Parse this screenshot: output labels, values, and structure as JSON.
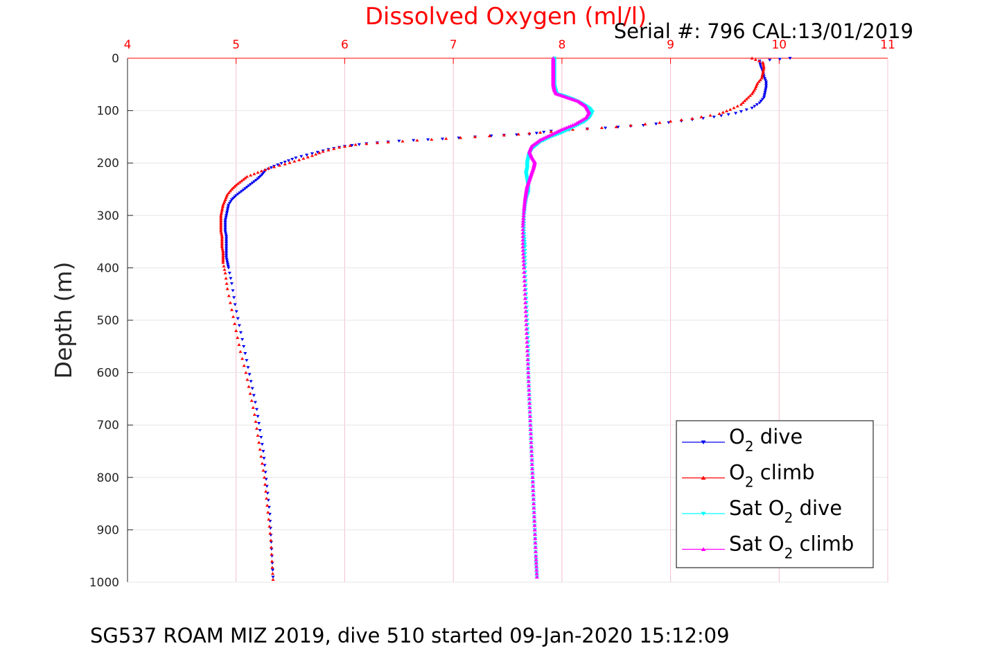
{
  "chart_data": {
    "type": "scatter",
    "title": "Dissolved Oxygen (ml/l)",
    "annotation": "Serial #: 796  CAL:13/01/2019",
    "footer": "SG537 ROAM MIZ 2019, dive 510 started 09-Jan-2020 15:12:09",
    "xlabel": "Dissolved Oxygen (ml/l)",
    "ylabel": "Depth (m)",
    "xlim": [
      4,
      11
    ],
    "ylim": [
      0,
      1000
    ],
    "y_reversed": true,
    "x_axis_position": "top",
    "xticks": [
      4,
      5,
      6,
      7,
      8,
      9,
      10,
      11
    ],
    "yticks": [
      0,
      100,
      200,
      300,
      400,
      500,
      600,
      700,
      800,
      900,
      1000
    ],
    "grid": true,
    "legend_position": "bottom-right",
    "colors": {
      "o2_dive": "#0000ee",
      "o2_climb": "#ff0000",
      "sat_dive": "#00ffff",
      "sat_climb": "#ff00ff",
      "grid": "#f2c0cc",
      "axis_x": "#ff0000"
    },
    "legend": [
      {
        "pre": "O",
        "sub": "2",
        "post": " dive",
        "series": "o2_dive",
        "marker": "down"
      },
      {
        "pre": "O",
        "sub": "2",
        "post": " climb",
        "series": "o2_climb",
        "marker": "up"
      },
      {
        "pre": "Sat O",
        "sub": "2",
        "post": " dive",
        "series": "sat_dive",
        "marker": "down"
      },
      {
        "pre": "Sat O",
        "sub": "2",
        "post": " climb",
        "series": "sat_climb",
        "marker": "up"
      }
    ],
    "series": [
      {
        "id": "o2_dive",
        "name": "O2 dive",
        "marker": "down",
        "color": "#0000ee",
        "points": [
          [
            10.1,
            0
          ],
          [
            9.82,
            5
          ],
          [
            9.83,
            15
          ],
          [
            9.85,
            25
          ],
          [
            9.86,
            35
          ],
          [
            9.88,
            45
          ],
          [
            9.88,
            55
          ],
          [
            9.87,
            65
          ],
          [
            9.86,
            75
          ],
          [
            9.82,
            85
          ],
          [
            9.75,
            95
          ],
          [
            9.6,
            105
          ],
          [
            9.4,
            112
          ],
          [
            9.1,
            120
          ],
          [
            8.75,
            128
          ],
          [
            8.4,
            133
          ],
          [
            7.9,
            139
          ],
          [
            7.7,
            145
          ],
          [
            7.35,
            148
          ],
          [
            6.9,
            154
          ],
          [
            6.5,
            158
          ],
          [
            6.2,
            163
          ],
          [
            6.0,
            168
          ],
          [
            5.85,
            174
          ],
          [
            5.7,
            182
          ],
          [
            5.55,
            190
          ],
          [
            5.45,
            198
          ],
          [
            5.35,
            206
          ],
          [
            5.27,
            214
          ],
          [
            5.24,
            222
          ],
          [
            5.2,
            230
          ],
          [
            5.15,
            238
          ],
          [
            5.1,
            246
          ],
          [
            5.05,
            254
          ],
          [
            5.0,
            262
          ],
          [
            4.96,
            270
          ],
          [
            4.93,
            280
          ],
          [
            4.92,
            290
          ],
          [
            4.91,
            300
          ],
          [
            4.9,
            310
          ],
          [
            4.9,
            320
          ],
          [
            4.9,
            330
          ],
          [
            4.91,
            340
          ],
          [
            4.91,
            350
          ],
          [
            4.91,
            360
          ],
          [
            4.91,
            370
          ],
          [
            4.91,
            380
          ],
          [
            4.92,
            390
          ],
          [
            4.93,
            400
          ],
          [
            4.96,
            430
          ],
          [
            4.99,
            470
          ],
          [
            5.03,
            510
          ],
          [
            5.07,
            550
          ],
          [
            5.11,
            590
          ],
          [
            5.15,
            630
          ],
          [
            5.19,
            670
          ],
          [
            5.22,
            710
          ],
          [
            5.25,
            750
          ],
          [
            5.27,
            790
          ],
          [
            5.29,
            830
          ],
          [
            5.31,
            870
          ],
          [
            5.32,
            910
          ],
          [
            5.33,
            950
          ],
          [
            5.34,
            990
          ]
        ]
      },
      {
        "id": "o2_climb",
        "name": "O2 climb",
        "marker": "up",
        "color": "#ff0000",
        "points": [
          [
            9.75,
            0
          ],
          [
            9.85,
            8
          ],
          [
            9.86,
            18
          ],
          [
            9.85,
            28
          ],
          [
            9.84,
            38
          ],
          [
            9.8,
            48
          ],
          [
            9.78,
            58
          ],
          [
            9.75,
            68
          ],
          [
            9.7,
            78
          ],
          [
            9.65,
            88
          ],
          [
            9.55,
            98
          ],
          [
            9.45,
            106
          ],
          [
            9.2,
            115
          ],
          [
            8.9,
            123
          ],
          [
            8.5,
            131
          ],
          [
            8.1,
            136
          ],
          [
            7.9,
            140
          ],
          [
            7.6,
            145
          ],
          [
            7.2,
            150
          ],
          [
            6.8,
            155
          ],
          [
            6.4,
            160
          ],
          [
            6.1,
            165
          ],
          [
            5.95,
            170
          ],
          [
            5.8,
            178
          ],
          [
            5.7,
            186
          ],
          [
            5.58,
            194
          ],
          [
            5.45,
            202
          ],
          [
            5.3,
            210
          ],
          [
            5.2,
            218
          ],
          [
            5.1,
            226
          ],
          [
            5.05,
            234
          ],
          [
            5.0,
            242
          ],
          [
            4.96,
            250
          ],
          [
            4.92,
            260
          ],
          [
            4.9,
            270
          ],
          [
            4.88,
            280
          ],
          [
            4.87,
            290
          ],
          [
            4.86,
            300
          ],
          [
            4.86,
            310
          ],
          [
            4.86,
            320
          ],
          [
            4.86,
            330
          ],
          [
            4.87,
            340
          ],
          [
            4.87,
            350
          ],
          [
            4.87,
            360
          ],
          [
            4.88,
            370
          ],
          [
            4.88,
            380
          ],
          [
            4.88,
            390
          ],
          [
            4.9,
            410
          ],
          [
            4.92,
            440
          ],
          [
            4.96,
            480
          ],
          [
            5.0,
            520
          ],
          [
            5.04,
            560
          ],
          [
            5.09,
            600
          ],
          [
            5.13,
            640
          ],
          [
            5.17,
            680
          ],
          [
            5.2,
            720
          ],
          [
            5.23,
            760
          ],
          [
            5.26,
            800
          ],
          [
            5.28,
            840
          ],
          [
            5.3,
            880
          ],
          [
            5.32,
            920
          ],
          [
            5.33,
            960
          ],
          [
            5.34,
            995
          ]
        ]
      },
      {
        "id": "sat_dive",
        "name": "Sat O2 dive",
        "marker": "down",
        "color": "#00ffff",
        "points": [
          [
            7.93,
            0
          ],
          [
            7.93,
            10
          ],
          [
            7.93,
            20
          ],
          [
            7.93,
            30
          ],
          [
            7.93,
            40
          ],
          [
            7.93,
            50
          ],
          [
            7.94,
            60
          ],
          [
            7.95,
            68
          ],
          [
            8.02,
            72
          ],
          [
            8.1,
            78
          ],
          [
            8.18,
            86
          ],
          [
            8.25,
            95
          ],
          [
            8.28,
            103
          ],
          [
            8.26,
            112
          ],
          [
            8.2,
            122
          ],
          [
            8.1,
            132
          ],
          [
            8.0,
            142
          ],
          [
            7.9,
            150
          ],
          [
            7.8,
            160
          ],
          [
            7.73,
            172
          ],
          [
            7.7,
            182
          ],
          [
            7.69,
            190
          ],
          [
            7.68,
            200
          ],
          [
            7.68,
            210
          ],
          [
            7.67,
            220
          ],
          [
            7.68,
            232
          ],
          [
            7.69,
            244
          ],
          [
            7.69,
            256
          ],
          [
            7.67,
            268
          ],
          [
            7.66,
            280
          ],
          [
            7.65,
            300
          ],
          [
            7.65,
            330
          ],
          [
            7.66,
            360
          ],
          [
            7.66,
            400
          ],
          [
            7.67,
            450
          ],
          [
            7.68,
            500
          ],
          [
            7.69,
            550
          ],
          [
            7.69,
            600
          ],
          [
            7.7,
            650
          ],
          [
            7.71,
            700
          ],
          [
            7.72,
            750
          ],
          [
            7.73,
            800
          ],
          [
            7.74,
            850
          ],
          [
            7.75,
            900
          ],
          [
            7.76,
            950
          ],
          [
            7.77,
            990
          ]
        ]
      },
      {
        "id": "sat_climb",
        "name": "Sat O2 climb",
        "marker": "up",
        "color": "#ff00ff",
        "points": [
          [
            7.92,
            0
          ],
          [
            7.92,
            10
          ],
          [
            7.92,
            20
          ],
          [
            7.92,
            30
          ],
          [
            7.92,
            40
          ],
          [
            7.92,
            50
          ],
          [
            7.93,
            60
          ],
          [
            7.95,
            68
          ],
          [
            8.05,
            75
          ],
          [
            8.15,
            82
          ],
          [
            8.22,
            92
          ],
          [
            8.25,
            103
          ],
          [
            8.22,
            114
          ],
          [
            8.12,
            126
          ],
          [
            8.0,
            136
          ],
          [
            7.9,
            146
          ],
          [
            7.8,
            156
          ],
          [
            7.72,
            168
          ],
          [
            7.7,
            178
          ],
          [
            7.72,
            188
          ],
          [
            7.75,
            198
          ],
          [
            7.74,
            208
          ],
          [
            7.72,
            220
          ],
          [
            7.7,
            232
          ],
          [
            7.68,
            244
          ],
          [
            7.67,
            256
          ],
          [
            7.66,
            270
          ],
          [
            7.65,
            290
          ],
          [
            7.64,
            320
          ],
          [
            7.64,
            360
          ],
          [
            7.65,
            400
          ],
          [
            7.66,
            450
          ],
          [
            7.67,
            500
          ],
          [
            7.68,
            550
          ],
          [
            7.69,
            600
          ],
          [
            7.7,
            650
          ],
          [
            7.71,
            700
          ],
          [
            7.72,
            750
          ],
          [
            7.73,
            800
          ],
          [
            7.74,
            850
          ],
          [
            7.75,
            900
          ],
          [
            7.76,
            950
          ],
          [
            7.77,
            990
          ]
        ]
      }
    ]
  }
}
